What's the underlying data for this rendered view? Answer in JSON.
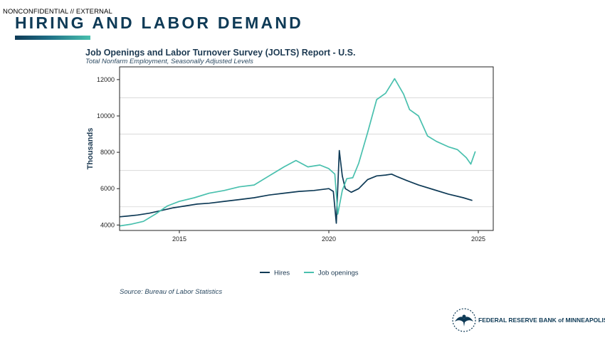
{
  "header": {
    "classification": "NONCONFIDENTIAL // EXTERNAL",
    "title": "HIRING AND LABOR DEMAND"
  },
  "footer": {
    "source": "Source: Bureau of Labor Statistics",
    "logo_text": "FEDERAL RESERVE BANK of MINNEAPOLIS"
  },
  "chart_data": {
    "type": "line",
    "title": "Job Openings and Labor Turnover Survey (JOLTS) Report - U.S.",
    "subtitle": "Total Nonfarm Employment, Seasonally Adjusted Levels",
    "ylabel": "Thousands",
    "xlabel": "",
    "xlim": [
      2013.0,
      2025.5
    ],
    "ylim": [
      3700,
      12700
    ],
    "x_ticks": [
      2015,
      2020,
      2025
    ],
    "y_ticks": [
      4000,
      6000,
      8000,
      10000,
      12000
    ],
    "grid": "horizontal",
    "legend_position": "bottom",
    "colors": {
      "Hires": "#0e3a56",
      "Job openings": "#49c0ae"
    },
    "series": [
      {
        "name": "Hires",
        "x": [
          2013.0,
          2013.3,
          2013.6,
          2014.0,
          2014.4,
          2014.8,
          2015.2,
          2015.6,
          2016.0,
          2016.5,
          2017.0,
          2017.5,
          2018.0,
          2018.5,
          2019.0,
          2019.5,
          2020.0,
          2020.15,
          2020.25,
          2020.35,
          2020.45,
          2020.55,
          2020.75,
          2021.0,
          2021.3,
          2021.6,
          2021.9,
          2022.1,
          2022.3,
          2022.6,
          2023.0,
          2023.5,
          2024.0,
          2024.5,
          2024.8
        ],
        "values": [
          4450,
          4500,
          4550,
          4650,
          4800,
          4950,
          5050,
          5150,
          5200,
          5300,
          5400,
          5500,
          5650,
          5750,
          5850,
          5900,
          6000,
          5850,
          4100,
          8100,
          6700,
          6000,
          5800,
          6000,
          6500,
          6700,
          6750,
          6800,
          6650,
          6450,
          6200,
          5950,
          5700,
          5500,
          5350
        ]
      },
      {
        "name": "Job openings",
        "x": [
          2013.0,
          2013.4,
          2013.8,
          2014.2,
          2014.6,
          2015.0,
          2015.5,
          2016.0,
          2016.5,
          2017.0,
          2017.5,
          2018.0,
          2018.5,
          2018.9,
          2019.3,
          2019.7,
          2020.0,
          2020.2,
          2020.3,
          2020.45,
          2020.6,
          2020.8,
          2021.0,
          2021.3,
          2021.6,
          2021.9,
          2022.2,
          2022.5,
          2022.7,
          2023.0,
          2023.3,
          2023.6,
          2024.0,
          2024.3,
          2024.6,
          2024.75,
          2024.9
        ],
        "values": [
          3950,
          4050,
          4200,
          4600,
          5050,
          5300,
          5500,
          5750,
          5900,
          6100,
          6200,
          6700,
          7200,
          7550,
          7200,
          7300,
          7100,
          6800,
          4600,
          5900,
          6550,
          6600,
          7400,
          9100,
          10900,
          11250,
          12050,
          11200,
          10350,
          10000,
          8900,
          8600,
          8300,
          8150,
          7700,
          7350,
          8050
        ]
      }
    ]
  }
}
